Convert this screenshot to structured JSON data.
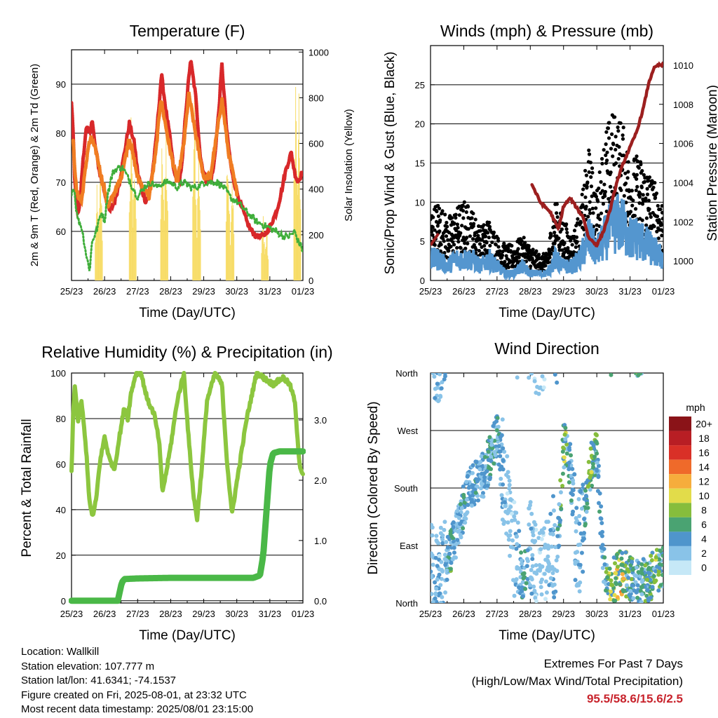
{
  "x_ticks": [
    "25/23",
    "26/23",
    "27/23",
    "28/23",
    "29/23",
    "30/23",
    "31/23",
    "01/23"
  ],
  "footer": {
    "location": "Location: Wallkill",
    "elevation": "Station elevation: 107.777 m",
    "latlon": "Station lat/lon: 41.6341; -74.1537",
    "created": "Figure created on Fri, 2025-08-01, at 23:32 UTC",
    "recent": "Most recent data timestamp: 2025/08/01 23:15:00",
    "extremes_title": "Extremes For Past 7 Days",
    "extremes_sub": "(High/Low/Max Wind/Total Precipitation)",
    "extremes_values": "95.5/58.6/15.6/2.5"
  },
  "colors": {
    "air_temp_2m": "#d8282a",
    "air_temp_9m": "#f07d22",
    "dewpoint": "#3fae3a",
    "solar": "#f7dc66",
    "wind_speed": "#5496cf",
    "gust": "#000000",
    "pressure": "#9c1f1f",
    "rh": "#8cc63f",
    "precip": "#4ab847"
  },
  "chart_data": [
    {
      "id": "temperature",
      "type": "line",
      "title": "Temperature (F)",
      "xlabel": "Time (Day/UTC)",
      "ylabel": "2m & 9m T (Red, Orange) & 2m Td (Green)",
      "ylabel_right": "Solar Insolation (Yellow)",
      "xlim": [
        0,
        7
      ],
      "ylim": [
        50,
        97
      ],
      "ylim_right": [
        0,
        1010
      ],
      "yticks": [
        60,
        70,
        80,
        90
      ],
      "yticks_right": [
        0,
        200,
        400,
        600,
        800,
        1000
      ],
      "grid": true,
      "series": [
        {
          "key": "t2m",
          "color": "#d8282a",
          "x": [
            0,
            0.05,
            0.1,
            0.15,
            0.2,
            0.28,
            0.35,
            0.45,
            0.55,
            0.62,
            0.7,
            0.85,
            1.0,
            1.15,
            1.3,
            1.45,
            1.6,
            1.75,
            1.9,
            2.0,
            2.15,
            2.25,
            2.35,
            2.45,
            2.55,
            2.65,
            2.72,
            2.85,
            3.0,
            3.1,
            3.15,
            3.25,
            3.35,
            3.45,
            3.6,
            3.75,
            3.9,
            4.0,
            4.1,
            4.2,
            4.3,
            4.45,
            4.55,
            4.7,
            4.85,
            5.0,
            5.1,
            5.2,
            5.3,
            5.45,
            5.6,
            5.8,
            6.0,
            6.2,
            6.35,
            6.5,
            6.65,
            6.75,
            6.85,
            6.9,
            7.0
          ],
          "y": [
            86,
            80,
            70,
            66,
            63,
            68,
            75,
            81,
            80,
            83,
            78,
            72,
            68,
            64,
            66,
            70,
            76,
            82,
            78,
            72,
            68,
            66,
            68,
            72,
            78,
            86,
            92,
            85,
            78,
            72,
            71,
            70,
            74,
            84,
            95,
            88,
            75,
            72,
            70,
            70,
            73,
            84,
            94,
            80,
            72,
            68,
            66,
            64,
            62,
            60,
            59,
            59,
            61,
            64,
            68,
            73,
            76,
            72,
            70,
            71,
            72
          ]
        },
        {
          "key": "t9m",
          "color": "#f07d22",
          "x": [
            0.05,
            0.15,
            0.3,
            0.5,
            0.6,
            0.75,
            1.1,
            1.5,
            1.75,
            2.0,
            2.35,
            2.55,
            2.7,
            3.0,
            3.2,
            3.4,
            3.55,
            3.75,
            4.0,
            4.2,
            4.4,
            4.55,
            4.75,
            5.0
          ],
          "y": [
            78,
            68,
            66,
            77,
            79,
            76,
            65,
            71,
            79,
            71,
            67,
            76,
            87,
            76,
            70,
            78,
            88,
            80,
            71,
            71,
            80,
            87,
            76,
            68
          ]
        },
        {
          "key": "td2m",
          "color": "#3fae3a",
          "x": [
            0,
            0.08,
            0.15,
            0.22,
            0.3,
            0.38,
            0.45,
            0.55,
            0.62,
            0.75,
            0.9,
            1.0,
            1.1,
            1.25,
            1.4,
            1.55,
            1.7,
            1.85,
            2.0,
            2.2,
            2.4,
            2.6,
            2.8,
            3.0,
            3.2,
            3.4,
            3.6,
            3.8,
            4.0,
            4.2,
            4.4,
            4.6,
            4.8,
            5.0,
            5.3,
            5.6,
            5.9,
            6.2,
            6.4,
            6.6,
            6.75,
            6.85,
            6.95,
            7.0
          ],
          "y": [
            68,
            69,
            64,
            62,
            61,
            58,
            55,
            52,
            58,
            60,
            64,
            62,
            68,
            72,
            73,
            73,
            71,
            69,
            67,
            69,
            70,
            69,
            70,
            70,
            69,
            70,
            69,
            69,
            70,
            70,
            70,
            69,
            67,
            66,
            64,
            62,
            61,
            60,
            59,
            59,
            60,
            58,
            57,
            56
          ]
        }
      ],
      "solar": {
        "color": "#f7dc66",
        "peaks": [
          {
            "t": 0.77,
            "v": 420
          },
          {
            "t": 0.88,
            "v": 560
          },
          {
            "t": 1.8,
            "v": 780
          },
          {
            "t": 1.9,
            "v": 620
          },
          {
            "t": 2.75,
            "v": 760
          },
          {
            "t": 2.86,
            "v": 700
          },
          {
            "t": 3.72,
            "v": 860
          },
          {
            "t": 3.85,
            "v": 640
          },
          {
            "t": 4.73,
            "v": 730
          },
          {
            "t": 4.86,
            "v": 560
          },
          {
            "t": 5.8,
            "v": 320
          },
          {
            "t": 5.9,
            "v": 250
          },
          {
            "t": 6.78,
            "v": 990
          },
          {
            "t": 6.88,
            "v": 820
          }
        ]
      }
    },
    {
      "id": "winds",
      "type": "scatter",
      "title": "Winds (mph) & Pressure (mb)",
      "xlabel": "Time (Day/UTC)",
      "ylabel": "Sonic/Prop Wind & Gust (Blue, Black)",
      "ylabel_right": "Station Pressure (Maroon)",
      "xlim": [
        0,
        7
      ],
      "ylim": [
        0,
        30
      ],
      "ylim_right": [
        999.0,
        1011.0
      ],
      "yticks": [
        0,
        5,
        10,
        15,
        20,
        25
      ],
      "yticks_right": [
        1000,
        1002,
        1004,
        1006,
        1008,
        1010
      ],
      "grid": true,
      "series": [
        {
          "key": "gust",
          "name": "Gust",
          "color": "#000000",
          "x": [
            0,
            0.25,
            0.5,
            0.75,
            1.0,
            1.25,
            1.5,
            1.75,
            2.0,
            2.25,
            2.5,
            2.75,
            3.0,
            3.25,
            3.5,
            3.75,
            4.0,
            4.25,
            4.5,
            4.75,
            5.0,
            5.25,
            5.5,
            5.75,
            6.0,
            6.25,
            6.5,
            6.75,
            7.0
          ],
          "y": [
            8,
            9,
            7,
            8,
            9,
            8,
            6,
            7,
            5,
            4,
            4,
            5,
            4,
            3,
            3,
            9,
            7,
            5,
            8,
            15,
            10,
            17,
            19,
            18,
            14,
            14,
            13,
            11,
            9
          ]
        },
        {
          "key": "wind",
          "name": "Wind",
          "color": "#5496cf",
          "x": [
            0,
            0.25,
            0.5,
            0.75,
            1.0,
            1.25,
            1.5,
            1.75,
            2.0,
            2.25,
            2.5,
            2.75,
            3.0,
            3.25,
            3.5,
            3.75,
            4.0,
            4.25,
            4.5,
            4.75,
            5.0,
            5.25,
            5.5,
            5.75,
            6.0,
            6.25,
            6.5,
            6.75,
            7.0
          ],
          "y": [
            3,
            3,
            2,
            3,
            3,
            3,
            2,
            3,
            2,
            1,
            1,
            2,
            1,
            1,
            1,
            3,
            2,
            2,
            3,
            6,
            4,
            6,
            8,
            8,
            6,
            6,
            5,
            4,
            3
          ]
        },
        {
          "key": "pressure",
          "name": "Station Pressure",
          "color": "#9c1f1f",
          "axis": "right",
          "x": [
            3.05,
            3.3,
            3.6,
            3.85,
            4.0,
            4.2,
            4.4,
            4.6,
            4.75,
            5.0,
            5.2,
            5.4,
            5.6,
            5.8,
            6.0,
            6.2,
            6.4,
            6.55,
            6.7,
            6.85,
            7.0
          ],
          "y": [
            1003.9,
            1003.0,
            1002.5,
            1001.6,
            1002.8,
            1003.2,
            1002.7,
            1002.2,
            1001.2,
            1000.8,
            1001.5,
            1002.6,
            1004.0,
            1005.0,
            1005.8,
            1006.6,
            1007.8,
            1009.0,
            1009.8,
            1010.0,
            1010.0
          ]
        }
      ]
    },
    {
      "id": "humidity",
      "type": "line",
      "title": "Relative Humidity (%) & Precipitation (in)",
      "xlabel": "Time (Day/UTC)",
      "ylabel": "Percent & Total Rainfall",
      "xlim": [
        0,
        7
      ],
      "ylim": [
        -1,
        100
      ],
      "ylim_right": [
        -0.0378,
        3.78
      ],
      "yticks": [
        0,
        20,
        40,
        60,
        80,
        100
      ],
      "yticks_right": [
        0.0,
        1.0,
        2.0,
        3.0
      ],
      "grid": true,
      "series": [
        {
          "key": "rh",
          "name": "Relative Humidity",
          "color": "#8cc63f",
          "x": [
            0,
            0.05,
            0.1,
            0.2,
            0.3,
            0.45,
            0.55,
            0.65,
            0.75,
            0.85,
            1.0,
            1.15,
            1.3,
            1.45,
            1.6,
            1.7,
            1.8,
            1.95,
            2.1,
            2.3,
            2.5,
            2.65,
            2.75,
            2.85,
            3.0,
            3.2,
            3.4,
            3.55,
            3.7,
            3.8,
            3.95,
            4.1,
            4.35,
            4.55,
            4.7,
            4.85,
            5.0,
            5.3,
            5.6,
            5.8,
            6.1,
            6.4,
            6.6,
            6.75,
            6.9,
            7.0
          ],
          "y": [
            56,
            82,
            95,
            78,
            88,
            65,
            42,
            37,
            45,
            60,
            72,
            62,
            58,
            72,
            85,
            80,
            91,
            100,
            100,
            88,
            82,
            70,
            48,
            55,
            68,
            88,
            100,
            70,
            45,
            36,
            60,
            88,
            100,
            95,
            62,
            38,
            52,
            80,
            100,
            98,
            95,
            98,
            95,
            88,
            60,
            55
          ]
        },
        {
          "key": "precip",
          "name": "Total Precipitation",
          "color": "#4ab847",
          "axis": "right",
          "x": [
            0,
            0.5,
            1.0,
            1.4,
            1.52,
            1.6,
            2.0,
            3.0,
            4.0,
            5.0,
            5.5,
            5.7,
            5.8,
            5.9,
            6.0,
            6.1,
            6.3,
            6.7,
            7.0
          ],
          "y": [
            0.0,
            0.0,
            0.0,
            0.0,
            0.3,
            0.36,
            0.37,
            0.38,
            0.38,
            0.38,
            0.38,
            0.42,
            0.75,
            1.5,
            2.25,
            2.45,
            2.48,
            2.48,
            2.48
          ]
        }
      ]
    },
    {
      "id": "direction",
      "type": "scatter",
      "title": "Wind Direction",
      "xlabel": "Time (Day/UTC)",
      "ylabel": "Direction (Colored By Speed)",
      "xlim": [
        0,
        7
      ],
      "ylim": [
        0,
        360
      ],
      "yticks": [
        0,
        90,
        180,
        270,
        360
      ],
      "ytick_labels": [
        "North",
        "East",
        "South",
        "West",
        "North"
      ],
      "grid": true,
      "colorbar": {
        "title": "mph",
        "labels": [
          "0",
          "2",
          "4",
          "6",
          "8",
          "10",
          "12",
          "14",
          "16",
          "18",
          "20+"
        ],
        "colors": [
          "#c6e8f7",
          "#89c3e8",
          "#4f95cc",
          "#4aa372",
          "#86bd3c",
          "#e2dc4a",
          "#f6ad3c",
          "#ef6a2a",
          "#d93027",
          "#b81e24",
          "#8a1318"
        ]
      },
      "series": [
        {
          "key": "dir",
          "name": "Wind Direction",
          "x": [
            0.05,
            0.15,
            0.3,
            0.45,
            0.6,
            0.8,
            1.0,
            1.2,
            1.4,
            1.6,
            1.8,
            2.0,
            2.2,
            2.4,
            2.6,
            2.8,
            3.0,
            3.2,
            3.4,
            3.6,
            3.8,
            4.0,
            4.2,
            4.4,
            4.6,
            4.8,
            5.0,
            5.2,
            5.4,
            5.6,
            5.8,
            6.0,
            6.2,
            6.4,
            6.6,
            6.8,
            6.95
          ],
          "y": [
            50,
            30,
            40,
            60,
            80,
            110,
            150,
            180,
            190,
            200,
            230,
            260,
            200,
            120,
            60,
            40,
            80,
            40,
            50,
            110,
            60,
            250,
            220,
            80,
            120,
            210,
            240,
            60,
            30,
            40,
            50,
            40,
            30,
            35,
            40,
            50,
            55
          ],
          "speed": [
            3,
            4,
            3,
            4,
            6,
            4,
            5,
            4,
            5,
            4,
            6,
            5,
            3,
            2,
            3,
            6,
            3,
            2,
            2,
            3,
            4,
            9,
            5,
            3,
            4,
            8,
            7,
            4,
            10,
            12,
            11,
            7,
            6,
            6,
            7,
            8,
            5
          ]
        }
      ]
    }
  ]
}
